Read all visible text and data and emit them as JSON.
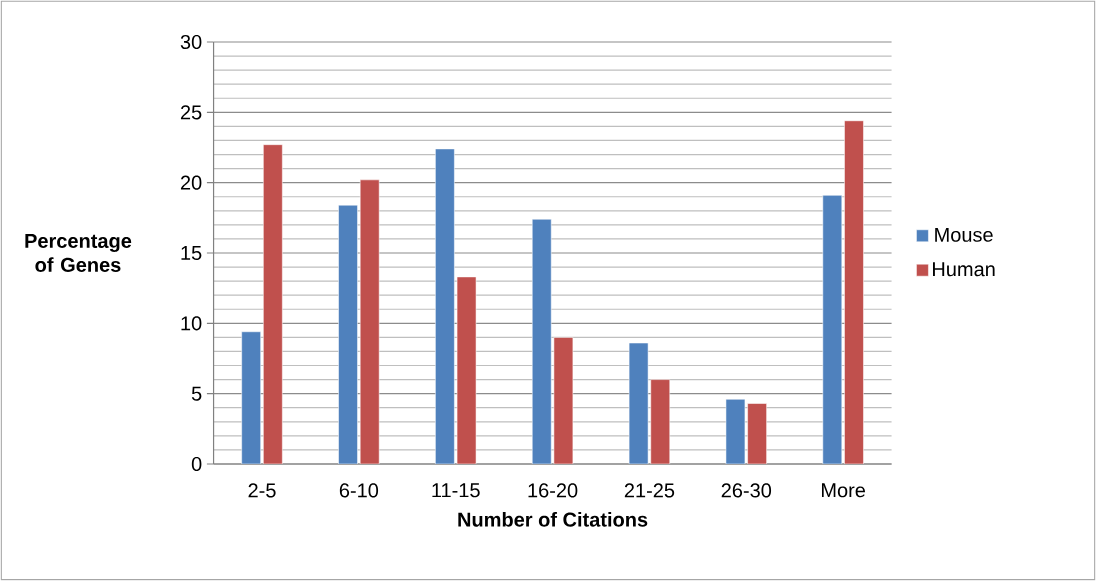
{
  "chart_data": {
    "type": "bar",
    "xlabel": "Number of Citations",
    "ylabel": "Percentage of Genes",
    "categories": [
      "2-5",
      "6-10",
      "11-15",
      "16-20",
      "21-25",
      "26-30",
      "More"
    ],
    "series": [
      {
        "name": "Mouse",
        "color": "#4f81bd",
        "values": [
          9.4,
          18.4,
          22.4,
          17.4,
          8.6,
          4.6,
          19.1
        ]
      },
      {
        "name": "Human",
        "color": "#c0504d",
        "values": [
          22.7,
          20.2,
          13.3,
          9.0,
          6.0,
          4.3,
          24.4
        ]
      }
    ],
    "ylim": [
      0,
      30
    ],
    "yticks": [
      0,
      5,
      10,
      15,
      20,
      25,
      30
    ],
    "grid": "y",
    "legend": "right"
  }
}
